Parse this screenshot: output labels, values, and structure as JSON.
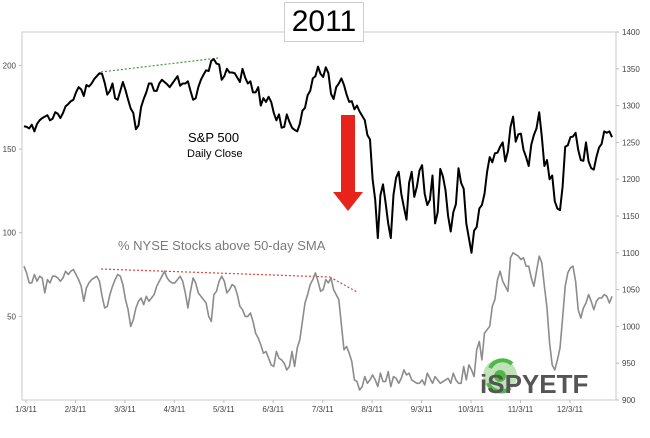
{
  "chart_data": {
    "type": "line",
    "title": "2011",
    "x_tick_labels": [
      "1/3/11",
      "2/3/11",
      "3/3/11",
      "4/3/11",
      "5/3/11",
      "6/3/11",
      "7/3/11",
      "8/3/11",
      "9/3/11",
      "10/3/11",
      "11/3/11",
      "12/3/11"
    ],
    "y_left": {
      "ticks": [
        "50",
        "100",
        "150",
        "200"
      ],
      "range": [
        0,
        220
      ]
    },
    "y_right": {
      "ticks": [
        "900",
        "950",
        "1000",
        "1050",
        "1100",
        "1150",
        "1200",
        "1250",
        "1300",
        "1350",
        "1400"
      ],
      "range": [
        900,
        1400
      ]
    },
    "annotations": {
      "sp500_label": "S&P 500",
      "sp500_sublabel": "Daily Close",
      "nyse_label": "% NYSE Stocks above 50-day SMA",
      "logo_text": "iSPYETF"
    },
    "colors": {
      "sp500": "#000000",
      "nyse": "#8c8c8c",
      "arrow": "#e8231c",
      "green_trend": "#3a9a3a",
      "red_trend": "#e0403a",
      "logo_text": "#555555",
      "logo_green": "#4fb848"
    },
    "series": [
      {
        "axis": "right",
        "values": [
          1272,
          1271,
          1269,
          1274,
          1265,
          1275,
          1280,
          1283,
          1285,
          1287,
          1280,
          1282,
          1291,
          1289,
          1283,
          1290,
          1299,
          1302,
          1306,
          1308,
          1318,
          1325,
          1322,
          1313,
          1328,
          1326,
          1330,
          1336,
          1340,
          1344,
          1343,
          1331,
          1315,
          1320,
          1330,
          1310,
          1308,
          1320,
          1332,
          1321,
          1308,
          1296,
          1290,
          1268,
          1273,
          1298,
          1309,
          1318,
          1330,
          1330,
          1320,
          1320,
          1330,
          1335,
          1332,
          1329,
          1325,
          1330,
          1335,
          1340,
          1327,
          1330,
          1330,
          1333,
          1320,
          1308,
          1310,
          1325,
          1335,
          1342,
          1348,
          1347,
          1361,
          1363,
          1357,
          1356,
          1335,
          1340,
          1350,
          1345,
          1345,
          1344,
          1338,
          1332,
          1350,
          1338,
          1330,
          1333,
          1318,
          1318,
          1325,
          1300,
          1310,
          1305,
          1312,
          1305,
          1290,
          1280,
          1288,
          1270,
          1271,
          1288,
          1278,
          1270,
          1267,
          1265,
          1275,
          1293,
          1297,
          1314,
          1320,
          1337,
          1340,
          1353,
          1343,
          1339,
          1352,
          1344,
          1316,
          1309,
          1325,
          1330,
          1337,
          1328,
          1315,
          1305,
          1306,
          1295,
          1300,
          1292,
          1286,
          1280,
          1260,
          1254,
          1200,
          1172,
          1120,
          1178,
          1193,
          1168,
          1140,
          1120,
          1179,
          1202,
          1210,
          1180,
          1162,
          1145,
          1195,
          1210,
          1176,
          1190,
          1212,
          1219,
          1180,
          1165,
          1172,
          1205,
          1140,
          1155,
          1214,
          1204,
          1185,
          1150,
          1129,
          1155,
          1166,
          1215,
          1195,
          1187,
          1140,
          1120,
          1100,
          1130,
          1135,
          1160,
          1165,
          1180,
          1210,
          1230,
          1223,
          1235,
          1236,
          1244,
          1250,
          1224,
          1238,
          1271,
          1285,
          1251,
          1261,
          1262,
          1240,
          1230,
          1218,
          1247,
          1260,
          1269,
          1291,
          1258,
          1218,
          1226,
          1200,
          1205,
          1170,
          1160,
          1158,
          1190,
          1244,
          1246,
          1257,
          1258,
          1263,
          1240,
          1226,
          1225,
          1250,
          1224,
          1215,
          1213,
          1230,
          1243,
          1248,
          1265,
          1263,
          1265,
          1257
        ]
      },
      {
        "axis": "left",
        "values": [
          80,
          76,
          70,
          70,
          75,
          71,
          74,
          73,
          64,
          72,
          70,
          74,
          74,
          73,
          71,
          73,
          77,
          75,
          77,
          78,
          75,
          72,
          68,
          59,
          67,
          70,
          72,
          73,
          74,
          71,
          62,
          55,
          56,
          63,
          68,
          72,
          75,
          74,
          69,
          60,
          54,
          44,
          48,
          55,
          59,
          61,
          57,
          62,
          59,
          61,
          63,
          68,
          71,
          74,
          77,
          73,
          71,
          70,
          70,
          72,
          74,
          71,
          64,
          55,
          65,
          73,
          70,
          64,
          62,
          60,
          58,
          50,
          47,
          63,
          65,
          71,
          74,
          71,
          64,
          66,
          69,
          68,
          63,
          56,
          54,
          50,
          50,
          52,
          47,
          40,
          37,
          33,
          28,
          29,
          25,
          21,
          20,
          29,
          25,
          24,
          22,
          18,
          20,
          29,
          20,
          31,
          36,
          47,
          58,
          63,
          69,
          72,
          76,
          71,
          65,
          66,
          72,
          70,
          73,
          66,
          63,
          60,
          45,
          30,
          32,
          28,
          23,
          12,
          11,
          6,
          8,
          14,
          10,
          12,
          15,
          12,
          8,
          16,
          11,
          11,
          17,
          8,
          14,
          13,
          10,
          13,
          18,
          15,
          16,
          12,
          11,
          10,
          10,
          12,
          9,
          16,
          13,
          10,
          14,
          12,
          10,
          11,
          12,
          13,
          10,
          16,
          12,
          10,
          10,
          20,
          12,
          21,
          18,
          14,
          30,
          35,
          24,
          40,
          42,
          44,
          56,
          60,
          72,
          77,
          71,
          68,
          65,
          85,
          88,
          87,
          86,
          84,
          85,
          80,
          80,
          73,
          68,
          77,
          86,
          82,
          68,
          55,
          34,
          21,
          18,
          24,
          31,
          49,
          68,
          76,
          79,
          80,
          71,
          54,
          49,
          55,
          58,
          63,
          59,
          54,
          59,
          61,
          61,
          63,
          62,
          58,
          62
        ]
      }
    ]
  }
}
